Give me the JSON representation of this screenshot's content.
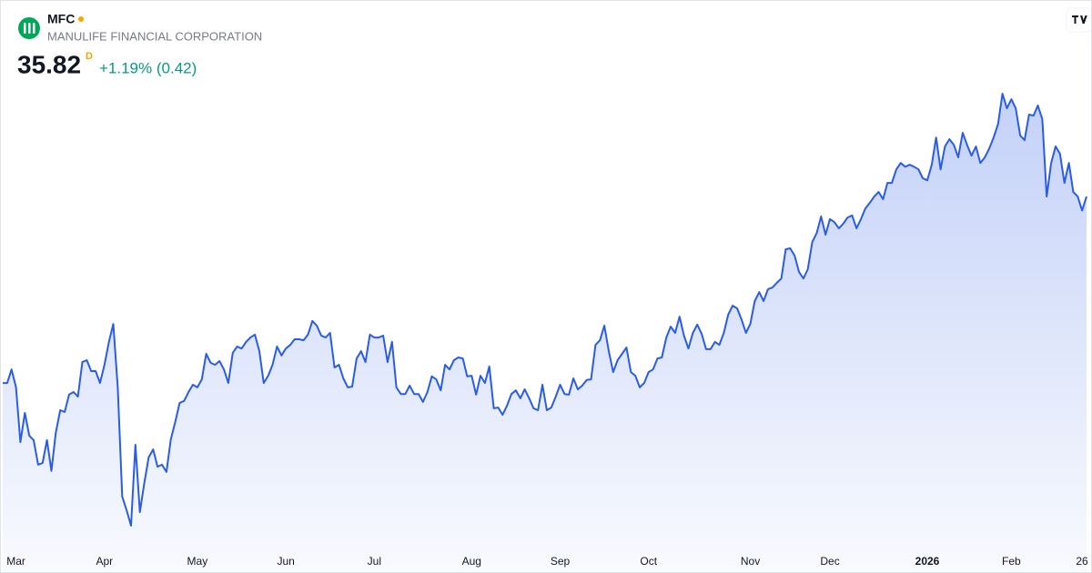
{
  "header": {
    "symbol": "MFC",
    "name": "MANULIFE FINANCIAL CORPORATION",
    "price": "35.82",
    "interval": "D",
    "change": "+1.19% (0.42)"
  },
  "chart_data": {
    "type": "line",
    "area": true,
    "color": "#2b5ce6",
    "categories": [
      null,
      null,
      null,
      "Mar",
      null,
      null,
      null,
      null,
      null,
      null,
      null,
      null,
      null,
      null,
      null,
      null,
      null,
      null,
      null,
      null,
      null,
      null,
      null,
      "Apr",
      null,
      null,
      null,
      null,
      null,
      null,
      null,
      null,
      null,
      null,
      null,
      null,
      null,
      null,
      null,
      null,
      null,
      null,
      null,
      null,
      "May",
      null,
      null,
      null,
      null,
      null,
      null,
      null,
      null,
      null,
      null,
      null,
      null,
      null,
      null,
      null,
      null,
      null,
      null,
      null,
      "Jun",
      null,
      null,
      null,
      null,
      null,
      null,
      null,
      null,
      null,
      null,
      null,
      null,
      null,
      null,
      null,
      null,
      null,
      null,
      null,
      "Jul",
      null,
      null,
      null,
      null,
      null,
      null,
      null,
      null,
      null,
      null,
      null,
      null,
      null,
      null,
      null,
      null,
      null,
      null,
      null,
      null,
      null,
      "Aug",
      null,
      null,
      null,
      null,
      null,
      null,
      null,
      null,
      null,
      null,
      null,
      null,
      null,
      null,
      null,
      null,
      null,
      null,
      null,
      "Sep",
      null,
      null,
      null,
      null,
      null,
      null,
      null,
      null,
      null,
      null,
      null,
      null,
      null,
      null,
      null,
      null,
      null,
      null,
      null,
      "Oct",
      null,
      null,
      null,
      null,
      null,
      null,
      null,
      null,
      null,
      null,
      null,
      null,
      null,
      null,
      null,
      null,
      null,
      null,
      null,
      null,
      null,
      null,
      "Nov",
      null,
      null,
      null,
      null,
      null,
      null,
      null,
      null,
      null,
      null,
      null,
      null,
      null,
      null,
      null,
      null,
      null,
      "Dec",
      null,
      null,
      null,
      null,
      null,
      null,
      null,
      null,
      null,
      null,
      null,
      null,
      null,
      null,
      null,
      null,
      null,
      null,
      null,
      null,
      null,
      "2026",
      null,
      null,
      null,
      null,
      null,
      null,
      null,
      null,
      null,
      null,
      null,
      null,
      null,
      null,
      null,
      null,
      null,
      null,
      "Feb",
      null,
      null,
      null,
      null,
      null,
      null,
      null,
      null,
      null,
      null,
      null,
      null,
      null,
      null,
      null,
      null,
      "26"
    ],
    "values": [
      30.2,
      30.2,
      30.61,
      30.07,
      28.42,
      29.3,
      28.61,
      28.48,
      27.74,
      27.79,
      28.48,
      27.55,
      28.7,
      29.38,
      29.33,
      29.85,
      29.93,
      29.79,
      30.83,
      30.89,
      30.56,
      30.56,
      30.2,
      30.75,
      31.44,
      31.98,
      30.07,
      26.78,
      26.37,
      25.9,
      28.34,
      26.31,
      27.19,
      27.96,
      28.2,
      27.68,
      27.74,
      27.52,
      28.5,
      29.03,
      29.6,
      29.66,
      29.93,
      30.15,
      30.07,
      30.31,
      31.08,
      30.81,
      30.75,
      30.86,
      30.61,
      30.2,
      31.11,
      31.3,
      31.24,
      31.44,
      31.57,
      31.66,
      31.16,
      30.2,
      30.42,
      30.75,
      31.3,
      31.03,
      31.24,
      31.35,
      31.52,
      31.52,
      31.49,
      31.66,
      32.07,
      31.93,
      31.63,
      31.57,
      31.71,
      30.67,
      30.75,
      30.34,
      30.07,
      30.09,
      30.94,
      31.16,
      30.83,
      31.66,
      31.57,
      31.57,
      31.63,
      30.83,
      31.44,
      30.07,
      29.87,
      29.87,
      30.12,
      29.87,
      29.87,
      29.63,
      29.93,
      30.4,
      30.31,
      29.98,
      30.75,
      30.61,
      30.89,
      30.97,
      30.94,
      30.4,
      30.42,
      29.85,
      30.42,
      30.2,
      30.7,
      29.44,
      29.46,
      29.24,
      29.52,
      29.87,
      29.98,
      29.74,
      30.01,
      29.74,
      29.44,
      29.38,
      30.15,
      29.38,
      29.46,
      29.79,
      30.15,
      29.87,
      29.85,
      30.34,
      30.01,
      30.12,
      30.29,
      30.31,
      31.35,
      31.49,
      31.93,
      31.16,
      30.53,
      30.89,
      31.08,
      31.27,
      30.53,
      30.42,
      30.07,
      30.2,
      30.53,
      30.61,
      30.94,
      30.97,
      31.57,
      31.9,
      31.71,
      32.2,
      31.63,
      31.24,
      31.71,
      31.96,
      31.68,
      31.22,
      31.22,
      31.44,
      31.35,
      31.71,
      32.26,
      32.53,
      32.45,
      32.12,
      31.71,
      31.98,
      32.67,
      32.94,
      32.67,
      33.03,
      33.08,
      33.22,
      33.35,
      34.23,
      34.26,
      34.04,
      33.55,
      33.35,
      33.63,
      34.45,
      34.72,
      35.22,
      34.67,
      35.14,
      35.05,
      34.86,
      35.0,
      35.19,
      35.25,
      34.86,
      35.14,
      35.46,
      35.63,
      35.82,
      35.96,
      35.74,
      36.23,
      36.23,
      36.64,
      36.83,
      36.72,
      36.78,
      36.72,
      36.64,
      36.37,
      36.31,
      36.78,
      37.6,
      36.64,
      37.33,
      37.55,
      37.38,
      37.0,
      37.74,
      37.38,
      37.05,
      37.33,
      36.83,
      37.0,
      37.27,
      37.6,
      38.01,
      38.92,
      38.48,
      38.75,
      38.48,
      37.66,
      37.52,
      38.29,
      38.26,
      38.56,
      38.15,
      35.82,
      36.83,
      37.33,
      37.11,
      36.23,
      36.83,
      35.96,
      35.82,
      35.4,
      35.82
    ]
  }
}
